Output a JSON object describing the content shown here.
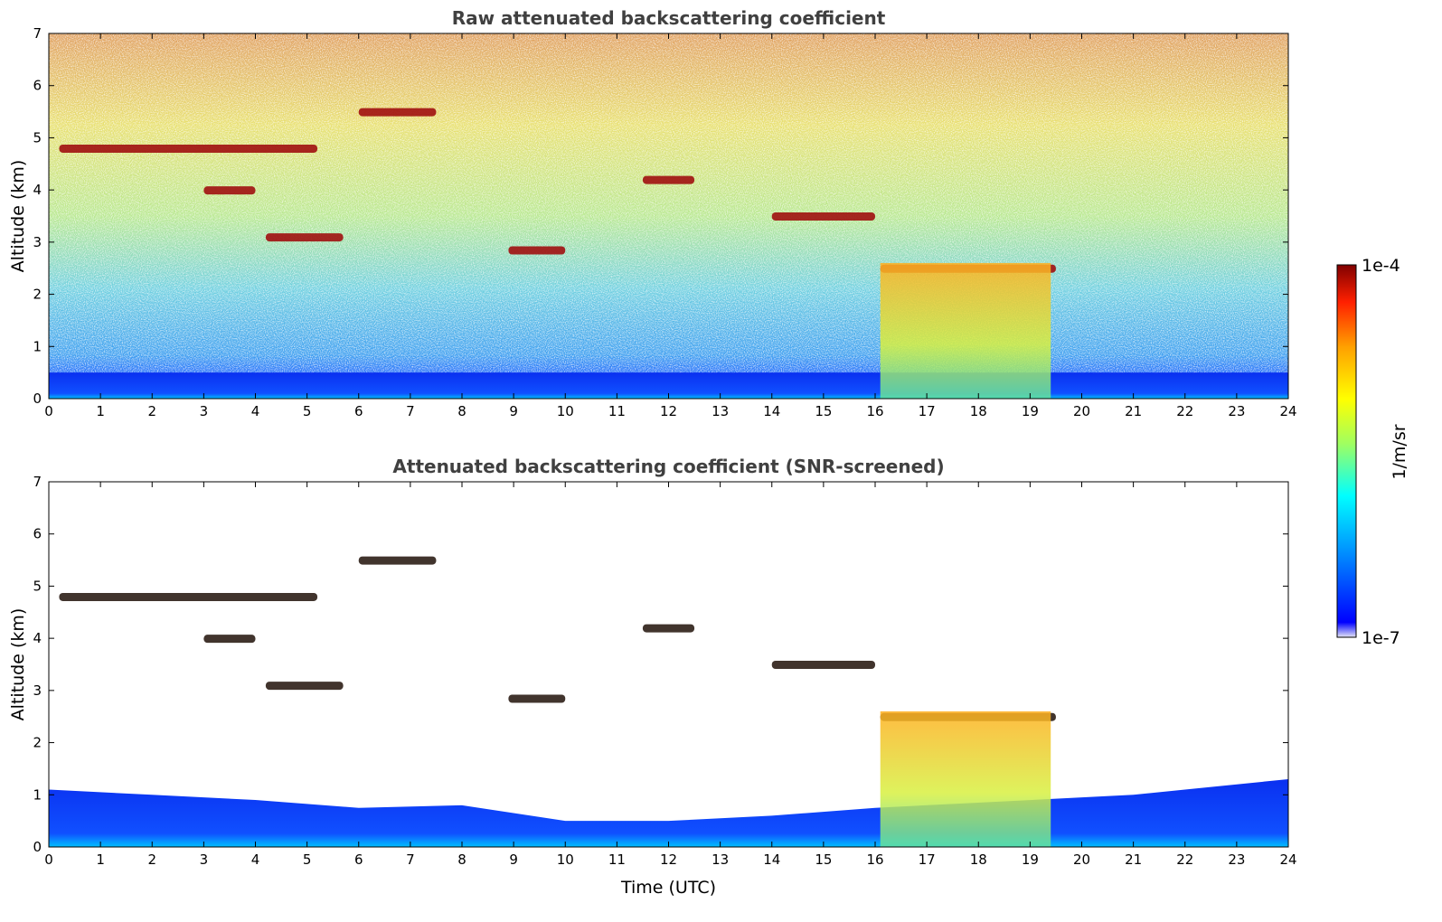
{
  "chart_data": [
    {
      "type": "heatmap",
      "title": "Raw attenuated backscattering coefficient",
      "xlabel": "",
      "ylabel": "Altitude (km)",
      "xlim": [
        0,
        24
      ],
      "ylim": [
        0,
        7
      ],
      "xticks": [
        "0",
        "1",
        "2",
        "3",
        "4",
        "5",
        "6",
        "7",
        "8",
        "9",
        "10",
        "11",
        "12",
        "13",
        "14",
        "15",
        "16",
        "17",
        "18",
        "19",
        "20",
        "21",
        "22",
        "23",
        "24"
      ],
      "yticks": [
        "0",
        "1",
        "2",
        "3",
        "4",
        "5",
        "6",
        "7"
      ],
      "cloud_layers": [
        {
          "t_start": 0.2,
          "t_end": 5.2,
          "alt_km": 4.8
        },
        {
          "t_start": 3.0,
          "t_end": 4.0,
          "alt_km": 4.0
        },
        {
          "t_start": 4.2,
          "t_end": 5.7,
          "alt_km": 3.1
        },
        {
          "t_start": 6.0,
          "t_end": 7.5,
          "alt_km": 5.5
        },
        {
          "t_start": 8.9,
          "t_end": 10.0,
          "alt_km": 2.85
        },
        {
          "t_start": 11.5,
          "t_end": 12.5,
          "alt_km": 4.2
        },
        {
          "t_start": 14.0,
          "t_end": 16.0,
          "alt_km": 3.5
        },
        {
          "t_start": 16.1,
          "t_end": 19.5,
          "alt_km": 2.5
        }
      ],
      "precipitation": {
        "t_start": 16.1,
        "t_end": 19.4
      }
    },
    {
      "type": "heatmap",
      "title": "Attenuated backscattering coefficient (SNR-screened)",
      "xlabel": "Time (UTC)",
      "ylabel": "Altitude (km)",
      "xlim": [
        0,
        24
      ],
      "ylim": [
        0,
        7
      ],
      "xticks": [
        "0",
        "1",
        "2",
        "3",
        "4",
        "5",
        "6",
        "7",
        "8",
        "9",
        "10",
        "11",
        "12",
        "13",
        "14",
        "15",
        "16",
        "17",
        "18",
        "19",
        "20",
        "21",
        "22",
        "23",
        "24"
      ],
      "yticks": [
        "0",
        "1",
        "2",
        "3",
        "4",
        "5",
        "6",
        "7"
      ],
      "boundary_layer_top_km": [
        [
          0,
          1.1
        ],
        [
          2,
          1.0
        ],
        [
          4,
          0.9
        ],
        [
          6,
          0.75
        ],
        [
          8,
          0.8
        ],
        [
          10,
          0.5
        ],
        [
          12,
          0.5
        ],
        [
          14,
          0.6
        ],
        [
          16,
          0.75
        ],
        [
          21,
          1.0
        ],
        [
          22,
          1.1
        ],
        [
          24,
          1.3
        ]
      ]
    }
  ],
  "colorbar": {
    "label": "1/m/sr",
    "max_label": "1e-4",
    "min_label": "1e-7",
    "scale": "log",
    "colormap": "jet",
    "range": [
      1e-07,
      0.0001
    ]
  },
  "colors": {
    "title": "#404040",
    "colormap": [
      "#e6e6f5",
      "#0000ff",
      "#00a0ff",
      "#00ffff",
      "#a0ff60",
      "#ffff00",
      "#ffa000",
      "#ff2000",
      "#800000"
    ]
  }
}
